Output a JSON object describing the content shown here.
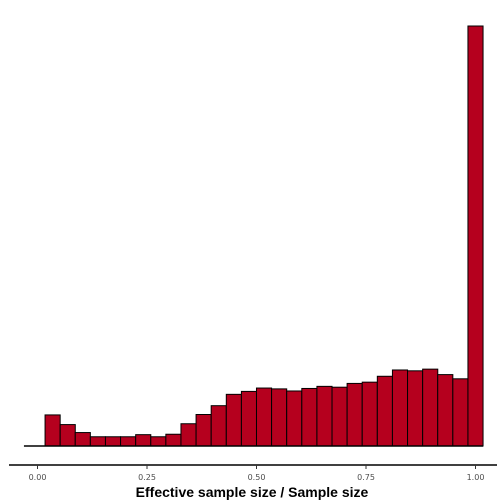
{
  "chart_data": {
    "type": "histogram",
    "xlabel": "Effective sample size / Sample size",
    "ylabel": "",
    "title": "",
    "xlim": [
      -0.025,
      1.025
    ],
    "ylim": [
      0,
      100
    ],
    "grid": false,
    "bar_color": "#b5001e",
    "bar_outline": "#000000",
    "bin_width": 0.0345,
    "bin_centers": [
      0.0,
      0.0345,
      0.069,
      0.1034,
      0.1379,
      0.1724,
      0.2069,
      0.2414,
      0.2759,
      0.3103,
      0.3448,
      0.3793,
      0.4138,
      0.4483,
      0.4828,
      0.5172,
      0.5517,
      0.5862,
      0.6207,
      0.6552,
      0.6897,
      0.7241,
      0.7586,
      0.7931,
      0.8276,
      0.8621,
      0.8966,
      0.931,
      0.9655,
      1.0
    ],
    "counts": [
      0,
      7.4,
      5.1,
      3.2,
      2.2,
      2.2,
      2.2,
      2.7,
      2.2,
      2.8,
      5.3,
      7.5,
      9.6,
      12.3,
      13.0,
      13.8,
      13.6,
      13.1,
      13.7,
      14.2,
      14.0,
      14.9,
      15.2,
      16.6,
      18.1,
      17.9,
      18.3,
      17.0,
      16.0,
      100.0
    ],
    "x_ticks": [
      0.0,
      0.25,
      0.5,
      0.75,
      1.0
    ],
    "x_tick_labels": [
      "0.00",
      "0.25",
      "0.50",
      "0.75",
      "1.00"
    ]
  }
}
